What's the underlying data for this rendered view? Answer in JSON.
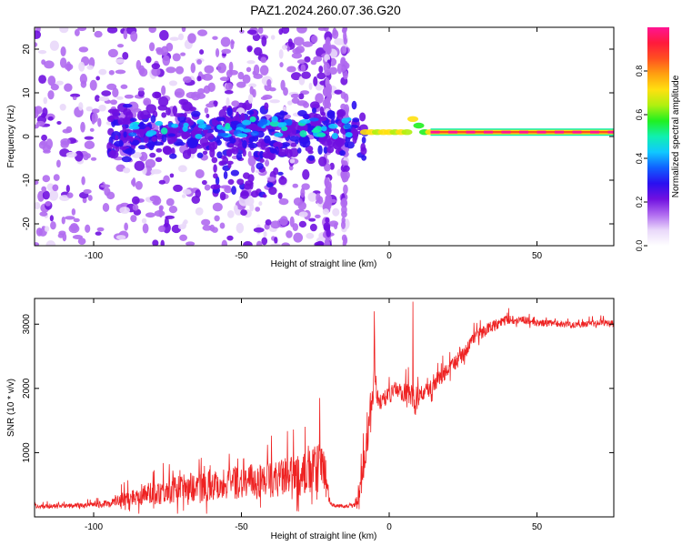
{
  "title": "PAZ1.2024.260.07.36.G20",
  "chart_data": [
    {
      "type": "heatmap",
      "xlabel": "Height of straight line (km)",
      "ylabel": "Frequency (Hz)",
      "xlim": [
        -120,
        76
      ],
      "ylim": [
        -25,
        25
      ],
      "xticks": [
        -100,
        -50,
        0,
        50
      ],
      "yticks": [
        -20,
        -10,
        0,
        10,
        20
      ],
      "colorbar": {
        "label": "Normalized spectral amplitude",
        "range": [
          0,
          1
        ],
        "ticks": [
          0.0,
          0.2,
          0.4,
          0.6,
          0.8
        ],
        "tick_labels": [
          "0.0",
          "0.2",
          "0.4",
          "0.6",
          "0.8"
        ],
        "colors": [
          "#ffffff",
          "#e9d8fa",
          "#b06af0",
          "#7010e0",
          "#2a10f0",
          "#1060ff",
          "#10c8ff",
          "#10f0b0",
          "#20f020",
          "#b0f010",
          "#ffe010",
          "#ffa010",
          "#ff5020",
          "#ff1a3c",
          "#ff1493"
        ]
      },
      "features": {
        "noise_region_x": [
          -120,
          -15
        ],
        "noise_band_freq": [
          -3,
          5
        ],
        "vertical_streaks_x": [
          -21,
          -15
        ],
        "tone_start_x": 0,
        "tone_freq": 1,
        "tone_step_x": 8,
        "tone_step_freq": 3
      },
      "grid": false
    },
    {
      "type": "line",
      "xlabel": "Height of straight line (km)",
      "ylabel": "SNR (10 * v/v)",
      "xlim": [
        -120,
        76
      ],
      "ylim": [
        0,
        3400
      ],
      "xticks": [
        -100,
        -50,
        0,
        50
      ],
      "yticks": [
        1000,
        2000,
        3000
      ],
      "color": "#ee2222",
      "envelope": {
        "x": [
          -120,
          -110,
          -100,
          -95,
          -90,
          -85,
          -80,
          -75,
          -70,
          -65,
          -60,
          -55,
          -50,
          -45,
          -40,
          -35,
          -30,
          -25,
          -22,
          -20,
          -18,
          -15,
          -12,
          -10,
          -8,
          -6,
          -5,
          -4,
          -3,
          -2,
          0,
          2,
          4,
          6,
          8,
          9,
          10,
          12,
          15,
          20,
          25,
          30,
          35,
          40,
          45,
          50,
          55,
          60,
          65,
          70,
          76
        ],
        "base": [
          150,
          160,
          170,
          190,
          240,
          280,
          320,
          350,
          380,
          400,
          420,
          440,
          470,
          480,
          500,
          520,
          540,
          600,
          650,
          200,
          170,
          150,
          170,
          300,
          900,
          1600,
          2100,
          1800,
          1750,
          1800,
          1850,
          1950,
          1900,
          1900,
          1800,
          1700,
          1850,
          1900,
          2000,
          2250,
          2500,
          2800,
          2950,
          3050,
          3050,
          3000,
          3000,
          2980,
          2980,
          3000,
          3000
        ],
        "amp": [
          60,
          70,
          80,
          120,
          220,
          300,
          360,
          420,
          450,
          470,
          480,
          500,
          520,
          540,
          560,
          600,
          650,
          800,
          800,
          60,
          50,
          50,
          60,
          300,
          600,
          600,
          500,
          350,
          300,
          250,
          250,
          250,
          300,
          300,
          400,
          500,
          300,
          250,
          250,
          250,
          250,
          200,
          180,
          150,
          120,
          110,
          100,
          100,
          100,
          100,
          100
        ]
      },
      "spikes": [
        {
          "x": -23.5,
          "y": 1850
        },
        {
          "x": -5,
          "y": 3200
        },
        {
          "x": 8,
          "y": 3350
        }
      ],
      "grid": false
    }
  ]
}
